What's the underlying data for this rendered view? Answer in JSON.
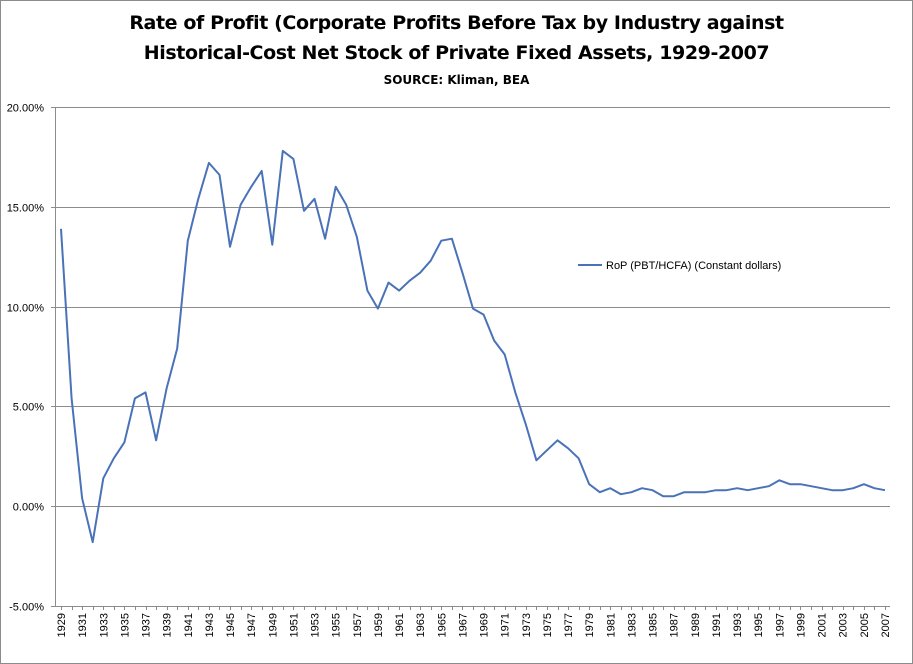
{
  "chart_data": {
    "type": "line",
    "title": "Rate of Profit (Corporate Profits Before Tax by Industry against",
    "title_line2": "Historical-Cost Net Stock of Private Fixed Assets, 1929-2007",
    "subtitle": "SOURCE: Kliman, BEA",
    "xlabel": "",
    "ylabel": "",
    "ylim": [
      -5,
      20
    ],
    "yticks": [
      -5,
      0,
      5,
      10,
      15,
      20
    ],
    "ytick_labels": [
      "-5.00%",
      "0.00%",
      "5.00%",
      "10.00%",
      "15.00%",
      "20.00%"
    ],
    "xtick_labels": [
      "1929",
      "1931",
      "1933",
      "1935",
      "1937",
      "1939",
      "1941",
      "1943",
      "1945",
      "1947",
      "1949",
      "1951",
      "1953",
      "1955",
      "1957",
      "1959",
      "1961",
      "1963",
      "1965",
      "1967",
      "1969",
      "1971",
      "1973",
      "1975",
      "1977",
      "1979",
      "1981",
      "1983",
      "1985",
      "1987",
      "1989",
      "1991",
      "1993",
      "1995",
      "1997",
      "1999",
      "2001",
      "2003",
      "2005",
      "2007"
    ],
    "grid": true,
    "legend_position": "right",
    "colors": {
      "series": "#4a72b8",
      "grid": "#8c8c8c",
      "axis": "#8c8c8c"
    },
    "x": [
      1929,
      1930,
      1931,
      1932,
      1933,
      1934,
      1935,
      1936,
      1937,
      1938,
      1939,
      1940,
      1941,
      1942,
      1943,
      1944,
      1945,
      1946,
      1947,
      1948,
      1949,
      1950,
      1951,
      1952,
      1953,
      1954,
      1955,
      1956,
      1957,
      1958,
      1959,
      1960,
      1961,
      1962,
      1963,
      1964,
      1965,
      1966,
      1967,
      1968,
      1969,
      1970,
      1971,
      1972,
      1973,
      1974,
      1975,
      1976,
      1977,
      1978,
      1979,
      1980,
      1981,
      1982,
      1983,
      1984,
      1985,
      1986,
      1987,
      1988,
      1989,
      1990,
      1991,
      1992,
      1993,
      1994,
      1995,
      1996,
      1997,
      1998,
      1999,
      2000,
      2001,
      2002,
      2003,
      2004,
      2005,
      2006,
      2007
    ],
    "series": [
      {
        "name": "RoP (PBT/HCFA) (Constant dollars)",
        "values": [
          13.9,
          5.4,
          0.4,
          -1.8,
          1.4,
          2.4,
          3.2,
          5.4,
          5.7,
          3.3,
          5.9,
          7.9,
          13.3,
          15.4,
          17.2,
          16.6,
          13.0,
          15.1,
          16.0,
          16.8,
          13.1,
          17.8,
          17.4,
          14.8,
          15.4,
          13.4,
          16.0,
          15.1,
          13.5,
          10.8,
          9.9,
          11.2,
          10.8,
          11.3,
          11.7,
          12.3,
          13.3,
          13.4,
          11.7,
          9.9,
          9.6,
          8.3,
          7.6,
          5.7,
          4.1,
          2.3,
          2.8,
          3.3,
          2.9,
          2.4,
          1.1,
          0.7,
          0.9,
          0.6,
          0.7,
          0.9,
          0.8,
          0.5,
          0.5,
          0.7,
          0.7,
          0.7,
          0.8,
          0.8,
          0.9,
          0.8,
          0.9,
          1.0,
          1.3,
          1.1,
          1.1,
          1.0,
          0.9,
          0.8,
          0.8,
          0.9,
          1.1,
          0.9,
          0.8
        ]
      }
    ]
  }
}
